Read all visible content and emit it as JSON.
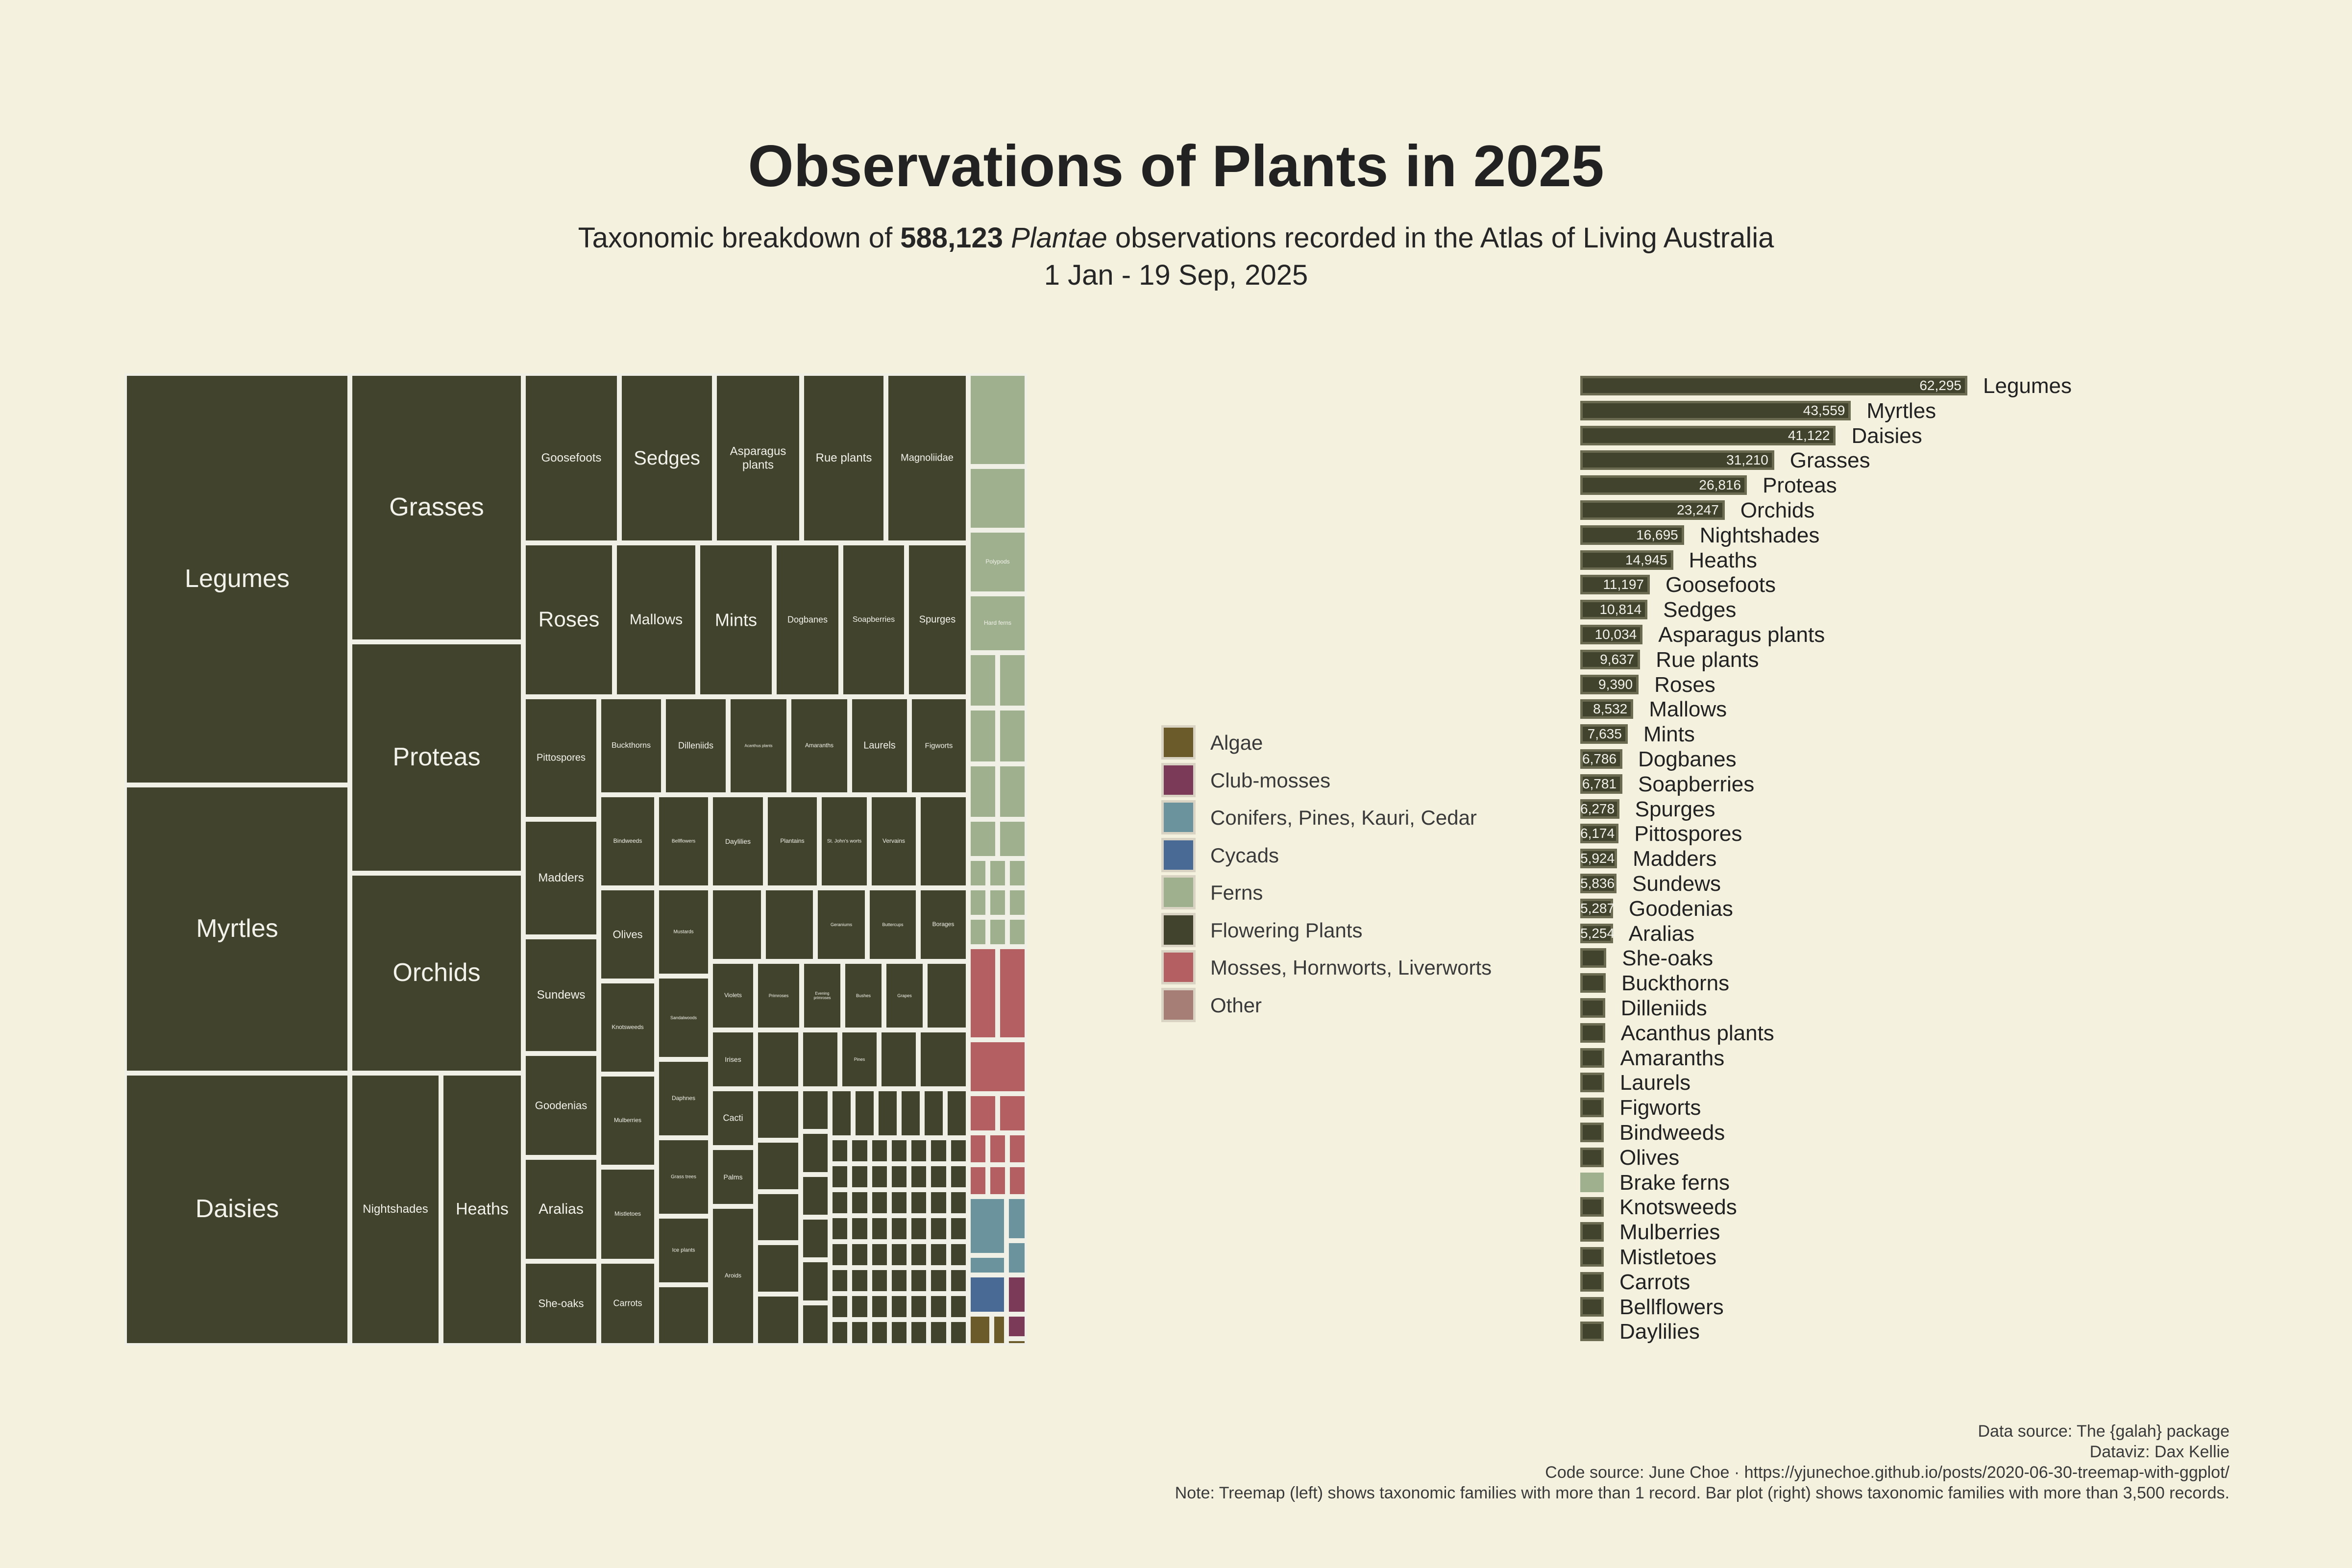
{
  "title": "Observations of Plants in 2025",
  "subtitle": {
    "prefix": "Taxonomic breakdown of ",
    "count": "588,123",
    "taxon": "Plantae",
    "suffix": " observations recorded in the Atlas of Living Australia",
    "dates": "1 Jan - 19 Sep, 2025"
  },
  "colors": {
    "background": "#f4f2df",
    "tile_border": "#f0f0e6",
    "Algae": "#6b5a2a",
    "Club-mosses": "#7a3a58",
    "Conifers, Pines, Kauri, Cedar": "#6a939e",
    "Cycads": "#4a6a96",
    "Ferns": "#9fb08e",
    "Flowering Plants": "#42432d",
    "Mosses, Hornworts, Liverworts": "#b45f62",
    "Other": "#a67e76"
  },
  "legend": [
    {
      "label": "Algae",
      "color": "#6b5a2a"
    },
    {
      "label": "Club-mosses",
      "color": "#7a3a58"
    },
    {
      "label": "Conifers, Pines, Kauri, Cedar",
      "color": "#6a939e"
    },
    {
      "label": "Cycads",
      "color": "#4a6a96"
    },
    {
      "label": "Ferns",
      "color": "#9fb08e"
    },
    {
      "label": "Flowering Plants",
      "color": "#42432d"
    },
    {
      "label": "Mosses, Hornworts, Liverworts",
      "color": "#b45f62"
    },
    {
      "label": "Other",
      "color": "#a67e76"
    }
  ],
  "chart_data": [
    {
      "type": "treemap",
      "grouping": "Flowering Plants, Ferns, Mosses, Hornworts, Liverworts, Conifers, Pines, Kauri, Cedar, Cycads, Algae, Club-mosses",
      "labelled_tiles": [
        {
          "label": "Legumes",
          "value": 62295
        },
        {
          "label": "Myrtles",
          "value": 43559
        },
        {
          "label": "Daisies",
          "value": 41122
        },
        {
          "label": "Grasses",
          "value": 31210
        },
        {
          "label": "Proteas",
          "value": 26816
        },
        {
          "label": "Orchids",
          "value": 23247
        },
        {
          "label": "Nightshades",
          "value": 16695
        },
        {
          "label": "Heaths",
          "value": 14945
        },
        {
          "label": "Goosefoots",
          "value": 11197
        },
        {
          "label": "Sedges",
          "value": 10814
        },
        {
          "label": "Asparagus plants",
          "value": 10034
        },
        {
          "label": "Rue plants",
          "value": 9637
        },
        {
          "label": "Magnoliidae",
          "value": null
        },
        {
          "label": "Roses",
          "value": 9390
        },
        {
          "label": "Mallows",
          "value": 8532
        },
        {
          "label": "Mints",
          "value": 7635
        },
        {
          "label": "Dogbanes",
          "value": 6786
        },
        {
          "label": "Soapberries",
          "value": 6781
        },
        {
          "label": "Spurges",
          "value": 6278
        },
        {
          "label": "Pittospores",
          "value": 6174
        },
        {
          "label": "Madders",
          "value": 5924
        },
        {
          "label": "Sundews",
          "value": 5836
        },
        {
          "label": "Goodenias",
          "value": 5287
        },
        {
          "label": "Aralias",
          "value": 5254
        },
        {
          "label": "She-oaks",
          "value": null
        },
        {
          "label": "Buckthorns",
          "value": null
        },
        {
          "label": "Dilleniids",
          "value": null
        },
        {
          "label": "Acanthus plants",
          "value": null
        },
        {
          "label": "Amaranths",
          "value": null
        },
        {
          "label": "Laurels",
          "value": null
        },
        {
          "label": "Figworts",
          "value": null
        },
        {
          "label": "Bindweeds",
          "value": null
        },
        {
          "label": "Olives",
          "value": null
        },
        {
          "label": "Brake ferns",
          "value": null
        },
        {
          "label": "Knotsweeds",
          "value": null
        },
        {
          "label": "Mulberries",
          "value": null
        },
        {
          "label": "Mistletoes",
          "value": null
        },
        {
          "label": "Carrots",
          "value": null
        },
        {
          "label": "Bellflowers",
          "value": null
        },
        {
          "label": "Daylilies",
          "value": null
        },
        {
          "label": "Plantains",
          "value": null
        },
        {
          "label": "St. John's worts",
          "value": null
        },
        {
          "label": "Vervains",
          "value": null
        },
        {
          "label": "Mustards",
          "value": null
        },
        {
          "label": "Geraniums",
          "value": null
        },
        {
          "label": "Buttercups",
          "value": null
        },
        {
          "label": "Borages",
          "value": null
        },
        {
          "label": "Sandalwoods",
          "value": null
        },
        {
          "label": "Daphnes",
          "value": null
        },
        {
          "label": "Grass trees",
          "value": null
        },
        {
          "label": "Ice plants",
          "value": null
        },
        {
          "label": "Violets",
          "value": null
        },
        {
          "label": "Irises",
          "value": null
        },
        {
          "label": "Cacti",
          "value": null
        },
        {
          "label": "Palms",
          "value": null
        },
        {
          "label": "Aroids",
          "value": null
        },
        {
          "label": "Primroses",
          "value": null
        },
        {
          "label": "Evening primroses",
          "value": null
        },
        {
          "label": "Bushes",
          "value": null
        },
        {
          "label": "Grapes",
          "value": null
        },
        {
          "label": "Pines",
          "value": null
        },
        {
          "label": "Polypods",
          "value": null
        },
        {
          "label": "Hard ferns",
          "value": null
        }
      ]
    },
    {
      "type": "bar",
      "orientation": "horizontal",
      "categories": [
        "Legumes",
        "Myrtles",
        "Daisies",
        "Grasses",
        "Proteas",
        "Orchids",
        "Nightshades",
        "Heaths",
        "Goosefoots",
        "Sedges",
        "Asparagus plants",
        "Rue plants",
        "Roses",
        "Mallows",
        "Mints",
        "Dogbanes",
        "Soapberries",
        "Spurges",
        "Pittospores",
        "Madders",
        "Sundews",
        "Goodenias",
        "Aralias",
        "She-oaks",
        "Buckthorns",
        "Dilleniids",
        "Acanthus plants",
        "Amaranths",
        "Laurels",
        "Figworts",
        "Bindweeds",
        "Olives",
        "Brake ferns",
        "Knotsweeds",
        "Mulberries",
        "Mistletoes",
        "Carrots",
        "Bellflowers",
        "Daylilies"
      ],
      "values": [
        62295,
        43559,
        41122,
        31210,
        26816,
        23247,
        16695,
        14945,
        11197,
        10814,
        10034,
        9637,
        9390,
        8532,
        7635,
        6786,
        6781,
        6278,
        6174,
        5924,
        5836,
        5287,
        5254,
        4200,
        4100,
        4000,
        4000,
        3900,
        3850,
        3800,
        3750,
        3700,
        3650,
        3600,
        3600,
        3550,
        3550,
        3520,
        3510
      ],
      "value_labels": [
        "62,295",
        "43,559",
        "41,122",
        "31,210",
        "26,816",
        "23,247",
        "16,695",
        "14,945",
        "11,197",
        "10,814",
        "10,034",
        "9,637",
        "9,390",
        "8,532",
        "7,635",
        "6,786",
        "6,781",
        "6,278",
        "6,174",
        "5,924",
        "5,836",
        "5,287",
        "5,254",
        "",
        "",
        "",
        "",
        "",
        "",
        "",
        "",
        "",
        "",
        "",
        "",
        "",
        "",
        "",
        ""
      ],
      "groups": [
        "Flowering Plants",
        "Flowering Plants",
        "Flowering Plants",
        "Flowering Plants",
        "Flowering Plants",
        "Flowering Plants",
        "Flowering Plants",
        "Flowering Plants",
        "Flowering Plants",
        "Flowering Plants",
        "Flowering Plants",
        "Flowering Plants",
        "Flowering Plants",
        "Flowering Plants",
        "Flowering Plants",
        "Flowering Plants",
        "Flowering Plants",
        "Flowering Plants",
        "Flowering Plants",
        "Flowering Plants",
        "Flowering Plants",
        "Flowering Plants",
        "Flowering Plants",
        "Flowering Plants",
        "Flowering Plants",
        "Flowering Plants",
        "Flowering Plants",
        "Flowering Plants",
        "Flowering Plants",
        "Flowering Plants",
        "Flowering Plants",
        "Flowering Plants",
        "Ferns",
        "Flowering Plants",
        "Flowering Plants",
        "Flowering Plants",
        "Flowering Plants",
        "Flowering Plants",
        "Flowering Plants"
      ],
      "xlim": [
        0,
        62295
      ]
    }
  ],
  "caption": [
    "Data source: The {galah} package",
    "Dataviz: Dax Kellie",
    "Code source: June Choe · https://yjunechoe.github.io/posts/2020-06-30-treemap-with-ggplot/",
    "Note: Treemap (left) shows taxonomic families with more than 1 record. Bar plot (right) shows taxonomic families with more than 3,500 records."
  ]
}
